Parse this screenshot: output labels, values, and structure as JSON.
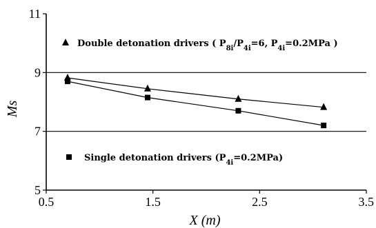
{
  "chart_data": {
    "type": "line",
    "xlabel": "X (m)",
    "ylabel": "Ms",
    "xlim": [
      0.5,
      3.5
    ],
    "ylim": [
      5,
      11
    ],
    "x_ticks": [
      "0.5",
      "1.5",
      "2.5",
      "3.5"
    ],
    "y_ticks": [
      "5",
      "7",
      "9",
      "11"
    ],
    "x_tick_values": [
      0.5,
      1.5,
      2.5,
      3.5
    ],
    "y_tick_values": [
      5,
      7,
      9,
      11
    ],
    "gridlines_y": [
      7,
      9
    ],
    "series": [
      {
        "name": "Double detonation drivers",
        "legend_parts": [
          {
            "t": "Double detonation drivers ( P",
            "s": "n"
          },
          {
            "t": "8i",
            "s": "sub"
          },
          {
            "t": "/P",
            "s": "n"
          },
          {
            "t": "4i",
            "s": "sub"
          },
          {
            "t": "=6, P",
            "s": "n"
          },
          {
            "t": "4i",
            "s": "sub"
          },
          {
            "t": "=0.2MPa )",
            "s": "n"
          }
        ],
        "marker": "triangle",
        "x": [
          0.7,
          1.45,
          2.3,
          3.1
        ],
        "y": [
          8.82,
          8.45,
          8.1,
          7.82
        ]
      },
      {
        "name": "Single detonation drivers",
        "legend_parts": [
          {
            "t": "Single detonation drivers (P",
            "s": "n"
          },
          {
            "t": "4i",
            "s": "sub"
          },
          {
            "t": "=0.2MPa)",
            "s": "n"
          }
        ],
        "marker": "square",
        "x": [
          0.7,
          1.45,
          2.3,
          3.1
        ],
        "y": [
          8.7,
          8.15,
          7.7,
          7.2
        ]
      }
    ]
  }
}
